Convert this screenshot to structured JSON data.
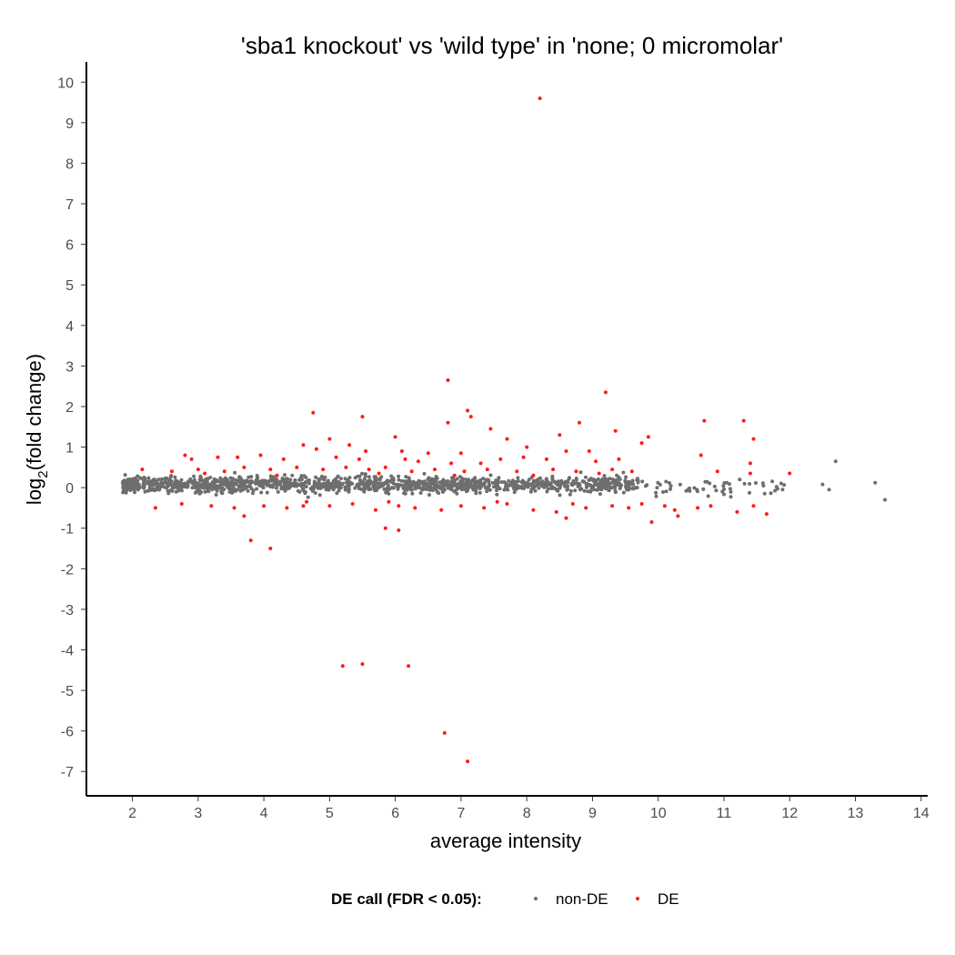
{
  "chart_data": {
    "type": "scatter",
    "title": "'sba1 knockout' vs 'wild type' in 'none; 0 micromolar'",
    "xlabel": "average intensity",
    "ylabel_main": "log",
    "ylabel_sub": "2",
    "ylabel_rest": "(fold change)",
    "xlim": [
      1.3,
      14.1
    ],
    "ylim": [
      -7.6,
      10.5
    ],
    "x_ticks": [
      "2",
      "3",
      "4",
      "5",
      "6",
      "7",
      "8",
      "9",
      "10",
      "11",
      "12",
      "13",
      "14"
    ],
    "y_ticks": [
      "10",
      "9",
      "8",
      "7",
      "6",
      "5",
      "4",
      "3",
      "2",
      "1",
      "0",
      "-1",
      "-2",
      "-3",
      "-4",
      "-5",
      "-6",
      "-7"
    ],
    "legend": {
      "title": "DE call (FDR < 0.05):",
      "position": "bottom",
      "items": [
        {
          "label": "non-DE",
          "color": "#6e6e6e"
        },
        {
          "label": "DE",
          "color": "#ff1a1a"
        }
      ]
    },
    "colors": {
      "nonDE": "#6e6e6e",
      "DE": "#ff1a1a"
    },
    "series": [
      {
        "name": "DE",
        "points": [
          [
            8.2,
            9.6
          ],
          [
            6.8,
            2.65
          ],
          [
            9.2,
            2.35
          ],
          [
            7.1,
            1.9
          ],
          [
            4.75,
            1.85
          ],
          [
            7.15,
            1.75
          ],
          [
            5.5,
            1.75
          ],
          [
            6.8,
            1.6
          ],
          [
            10.7,
            1.65
          ],
          [
            11.3,
            1.65
          ],
          [
            8.8,
            1.6
          ],
          [
            7.45,
            1.45
          ],
          [
            9.35,
            1.4
          ],
          [
            8.5,
            1.3
          ],
          [
            6.0,
            1.25
          ],
          [
            9.85,
            1.25
          ],
          [
            11.45,
            1.2
          ],
          [
            7.7,
            1.2
          ],
          [
            5.0,
            1.2
          ],
          [
            9.75,
            1.1
          ],
          [
            4.6,
            1.05
          ],
          [
            5.3,
            1.05
          ],
          [
            8.0,
            1.0
          ],
          [
            4.8,
            0.95
          ],
          [
            6.1,
            0.9
          ],
          [
            5.55,
            0.9
          ],
          [
            8.6,
            0.9
          ],
          [
            6.5,
            0.85
          ],
          [
            7.0,
            0.85
          ],
          [
            8.95,
            0.9
          ],
          [
            10.65,
            0.8
          ],
          [
            11.4,
            0.6
          ],
          [
            2.8,
            0.8
          ],
          [
            3.3,
            0.75
          ],
          [
            2.9,
            0.7
          ],
          [
            3.6,
            0.75
          ],
          [
            3.95,
            0.8
          ],
          [
            4.3,
            0.7
          ],
          [
            5.1,
            0.75
          ],
          [
            5.45,
            0.7
          ],
          [
            6.15,
            0.7
          ],
          [
            6.35,
            0.65
          ],
          [
            6.85,
            0.6
          ],
          [
            7.3,
            0.6
          ],
          [
            7.6,
            0.7
          ],
          [
            7.95,
            0.75
          ],
          [
            8.3,
            0.7
          ],
          [
            9.05,
            0.65
          ],
          [
            9.4,
            0.7
          ],
          [
            2.15,
            0.45
          ],
          [
            2.6,
            0.4
          ],
          [
            3.0,
            0.45
          ],
          [
            3.4,
            0.4
          ],
          [
            3.7,
            0.5
          ],
          [
            4.1,
            0.45
          ],
          [
            4.5,
            0.5
          ],
          [
            4.9,
            0.45
          ],
          [
            5.25,
            0.5
          ],
          [
            5.6,
            0.45
          ],
          [
            5.85,
            0.5
          ],
          [
            6.25,
            0.4
          ],
          [
            6.6,
            0.45
          ],
          [
            7.05,
            0.4
          ],
          [
            7.4,
            0.45
          ],
          [
            7.85,
            0.4
          ],
          [
            8.4,
            0.45
          ],
          [
            8.75,
            0.4
          ],
          [
            9.3,
            0.45
          ],
          [
            9.6,
            0.4
          ],
          [
            10.9,
            0.4
          ],
          [
            11.4,
            0.35
          ],
          [
            12.0,
            0.35
          ],
          [
            2.35,
            -0.5
          ],
          [
            2.75,
            -0.4
          ],
          [
            3.2,
            -0.45
          ],
          [
            3.55,
            -0.5
          ],
          [
            3.7,
            -0.7
          ],
          [
            4.0,
            -0.45
          ],
          [
            4.35,
            -0.5
          ],
          [
            4.6,
            -0.45
          ],
          [
            5.0,
            -0.45
          ],
          [
            5.35,
            -0.4
          ],
          [
            5.7,
            -0.55
          ],
          [
            6.05,
            -0.45
          ],
          [
            6.3,
            -0.5
          ],
          [
            6.7,
            -0.55
          ],
          [
            7.0,
            -0.45
          ],
          [
            7.35,
            -0.5
          ],
          [
            7.7,
            -0.4
          ],
          [
            8.1,
            -0.55
          ],
          [
            8.45,
            -0.6
          ],
          [
            8.6,
            -0.75
          ],
          [
            8.9,
            -0.5
          ],
          [
            9.3,
            -0.45
          ],
          [
            9.55,
            -0.5
          ],
          [
            9.9,
            -0.85
          ],
          [
            10.25,
            -0.55
          ],
          [
            10.3,
            -0.7
          ],
          [
            10.6,
            -0.5
          ],
          [
            10.8,
            -0.45
          ],
          [
            11.2,
            -0.6
          ],
          [
            11.65,
            -0.65
          ],
          [
            11.45,
            -0.45
          ],
          [
            5.85,
            -1.0
          ],
          [
            6.05,
            -1.05
          ],
          [
            3.8,
            -1.3
          ],
          [
            4.1,
            -1.5
          ],
          [
            5.2,
            -4.4
          ],
          [
            5.5,
            -4.35
          ],
          [
            6.2,
            -4.4
          ],
          [
            6.75,
            -6.05
          ],
          [
            7.1,
            -6.75
          ],
          [
            4.2,
            0.3
          ],
          [
            5.75,
            0.35
          ],
          [
            6.9,
            0.3
          ],
          [
            8.1,
            0.3
          ],
          [
            9.1,
            0.35
          ],
          [
            3.1,
            0.35
          ],
          [
            4.65,
            -0.35
          ],
          [
            5.9,
            -0.35
          ],
          [
            7.55,
            -0.35
          ],
          [
            8.7,
            -0.4
          ],
          [
            9.75,
            -0.4
          ],
          [
            10.1,
            -0.45
          ]
        ]
      }
    ],
    "nonDE_cloud": {
      "description_free_params": true,
      "x_range": [
        1.85,
        9.7
      ],
      "sparse_x_range": [
        9.7,
        13.5
      ],
      "count_dense": 1300,
      "count_sparse": 55,
      "spread": 0.45,
      "extra_points": [
        [
          12.7,
          0.65
        ],
        [
          13.3,
          0.12
        ],
        [
          13.45,
          -0.3
        ],
        [
          12.5,
          0.08
        ],
        [
          12.6,
          -0.05
        ]
      ]
    }
  }
}
